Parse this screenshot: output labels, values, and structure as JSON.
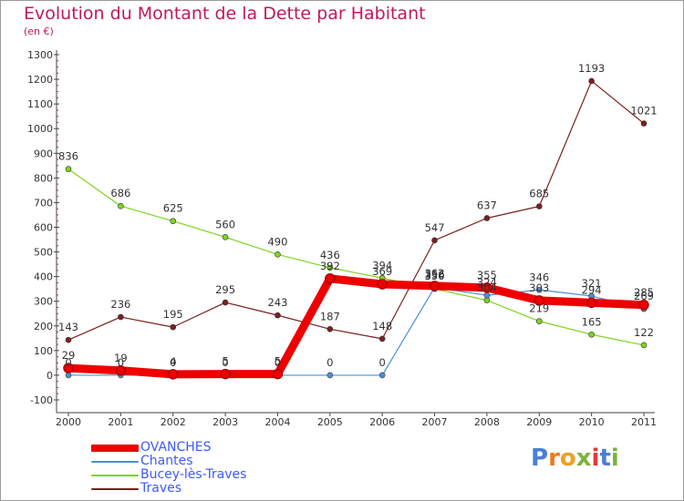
{
  "title": "Evolution du Montant de la Dette par Habitant",
  "unit": "(en €)",
  "logo": {
    "text": "Proxiti",
    "letter_colors": [
      "#4a7fd6",
      "#f07a1a",
      "#f0a020",
      "#7cb342",
      "#e53935",
      "#4a7fd6",
      "#7cb342"
    ]
  },
  "chart_data": {
    "type": "line",
    "title": "Evolution du Montant de la Dette par Habitant",
    "ylabel": "(en €)",
    "xlabel": "",
    "ylim": [
      -100,
      1300
    ],
    "ytick_step": 100,
    "categories": [
      "2000",
      "2001",
      "2002",
      "2003",
      "2004",
      "2005",
      "2006",
      "2007",
      "2008",
      "2009",
      "2010",
      "2011"
    ],
    "series": [
      {
        "name": "OVANCHES",
        "color": "#ee0000",
        "values": [
          29,
          19,
          4,
          5,
          5,
          392,
          369,
          362,
          355,
          303,
          294,
          285
        ],
        "labels": [
          "29",
          "19",
          "4",
          "5",
          "5",
          "392",
          "369",
          "362",
          "355",
          "303",
          "294",
          "285"
        ]
      },
      {
        "name": "Chantes",
        "color": "#4a90d9",
        "values": [
          0,
          0,
          0,
          0,
          0,
          0,
          0,
          356,
          324,
          346,
          321,
          269
        ],
        "labels": [
          "0",
          "0",
          "0",
          "0",
          "0",
          "0",
          "0",
          "356",
          "324",
          "346",
          "321",
          "269"
        ]
      },
      {
        "name": "Bucey-lès-Traves",
        "color": "#7ed321",
        "values": [
          836,
          686,
          625,
          560,
          490,
          436,
          394,
          350,
          304,
          219,
          165,
          122
        ],
        "labels": [
          "836",
          "686",
          "625",
          "560",
          "490",
          "436",
          "394",
          "350",
          "304",
          "219",
          "165",
          "122"
        ]
      },
      {
        "name": "Traves",
        "color": "#7a2020",
        "values": [
          143,
          236,
          195,
          295,
          243,
          187,
          148,
          547,
          637,
          685,
          1193,
          1021
        ],
        "labels": [
          "143",
          "236",
          "195",
          "295",
          "243",
          "187",
          "148",
          "547",
          "637",
          "685",
          "1193",
          "1021"
        ]
      }
    ]
  }
}
